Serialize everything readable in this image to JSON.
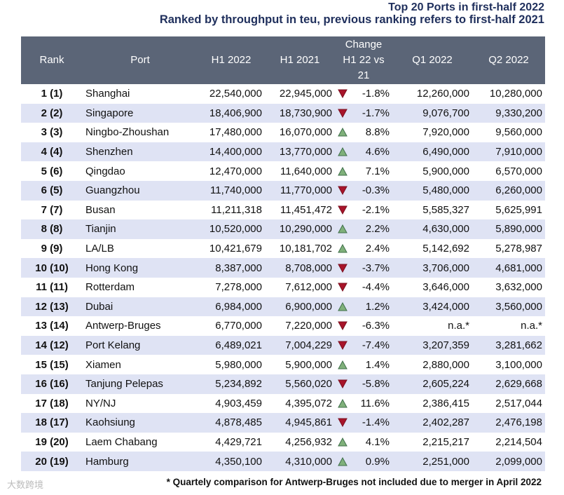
{
  "header": {
    "title": "Top 20 Ports in first-half 2022",
    "subtitle": "Ranked by throughput in teu, previous ranking refers to first-half 2021"
  },
  "table": {
    "columns": [
      "Rank",
      "Port",
      "H1 2022",
      "H1 2021",
      "Change H1 22 vs 21",
      "Q1 2022",
      "Q2 2022"
    ],
    "rows": [
      [
        "1 (1)",
        "Shanghai",
        "22,540,000",
        "22,945,000",
        "-1.8%",
        "12,260,000",
        "10,280,000"
      ],
      [
        "2 (2)",
        "Singapore",
        "18,406,900",
        "18,730,900",
        "-1.7%",
        "9,076,700",
        "9,330,200"
      ],
      [
        "3 (3)",
        "Ningbo-Zhoushan",
        "17,480,000",
        "16,070,000",
        "8.8%",
        "7,920,000",
        "9,560,000"
      ],
      [
        "4 (4)",
        "Shenzhen",
        "14,400,000",
        "13,770,000",
        "4.6%",
        "6,490,000",
        "7,910,000"
      ],
      [
        "5 (6)",
        "Qingdao",
        "12,470,000",
        "11,640,000",
        "7.1%",
        "5,900,000",
        "6,570,000"
      ],
      [
        "6 (5)",
        "Guangzhou",
        "11,740,000",
        "11,770,000",
        "-0.3%",
        "5,480,000",
        "6,260,000"
      ],
      [
        "7 (7)",
        "Busan",
        "11,211,318",
        "11,451,472",
        "-2.1%",
        "5,585,327",
        "5,625,991"
      ],
      [
        "8 (8)",
        "Tianjin",
        "10,520,000",
        "10,290,000",
        "2.2%",
        "4,630,000",
        "5,890,000"
      ],
      [
        "9 (9)",
        "LA/LB",
        "10,421,679",
        "10,181,702",
        "2.4%",
        "5,142,692",
        "5,278,987"
      ],
      [
        "10 (10)",
        "Hong Kong",
        "8,387,000",
        "8,708,000",
        "-3.7%",
        "3,706,000",
        "4,681,000"
      ],
      [
        "11 (11)",
        "Rotterdam",
        "7,278,000",
        "7,612,000",
        "-4.4%",
        "3,646,000",
        "3,632,000"
      ],
      [
        "12 (13)",
        "Dubai",
        "6,984,000",
        "6,900,000",
        "1.2%",
        "3,424,000",
        "3,560,000"
      ],
      [
        "13 (14)",
        "Antwerp-Bruges",
        "6,770,000",
        "7,220,000",
        "-6.3%",
        "n.a.*",
        "n.a.*"
      ],
      [
        "14 (12)",
        "Port Kelang",
        "6,489,021",
        "7,004,229",
        "-7.4%",
        "3,207,359",
        "3,281,662"
      ],
      [
        "15 (15)",
        "Xiamen",
        "5,980,000",
        "5,900,000",
        "1.4%",
        "2,880,000",
        "3,100,000"
      ],
      [
        "16 (16)",
        "Tanjung Pelepas",
        "5,234,892",
        "5,560,020",
        "-5.8%",
        "2,605,224",
        "2,629,668"
      ],
      [
        "17 (18)",
        "NY/NJ",
        "4,903,459",
        "4,395,072",
        "11.6%",
        "2,386,415",
        "2,517,044"
      ],
      [
        "18 (17)",
        "Kaohsiung",
        "4,878,485",
        "4,945,861",
        "-1.4%",
        "2,402,287",
        "2,476,198"
      ],
      [
        "19 (20)",
        "Laem Chabang",
        "4,429,721",
        "4,256,932",
        "4.1%",
        "2,215,217",
        "2,214,504"
      ],
      [
        "20 (19)",
        "Hamburg",
        "4,350,100",
        "4,310,000",
        "0.9%",
        "2,251,000",
        "2,099,000"
      ]
    ]
  },
  "footnote": "* Quartely comparison for Antwerp-Bruges not included due to merger in April 2022",
  "watermark": "大数跨境"
}
